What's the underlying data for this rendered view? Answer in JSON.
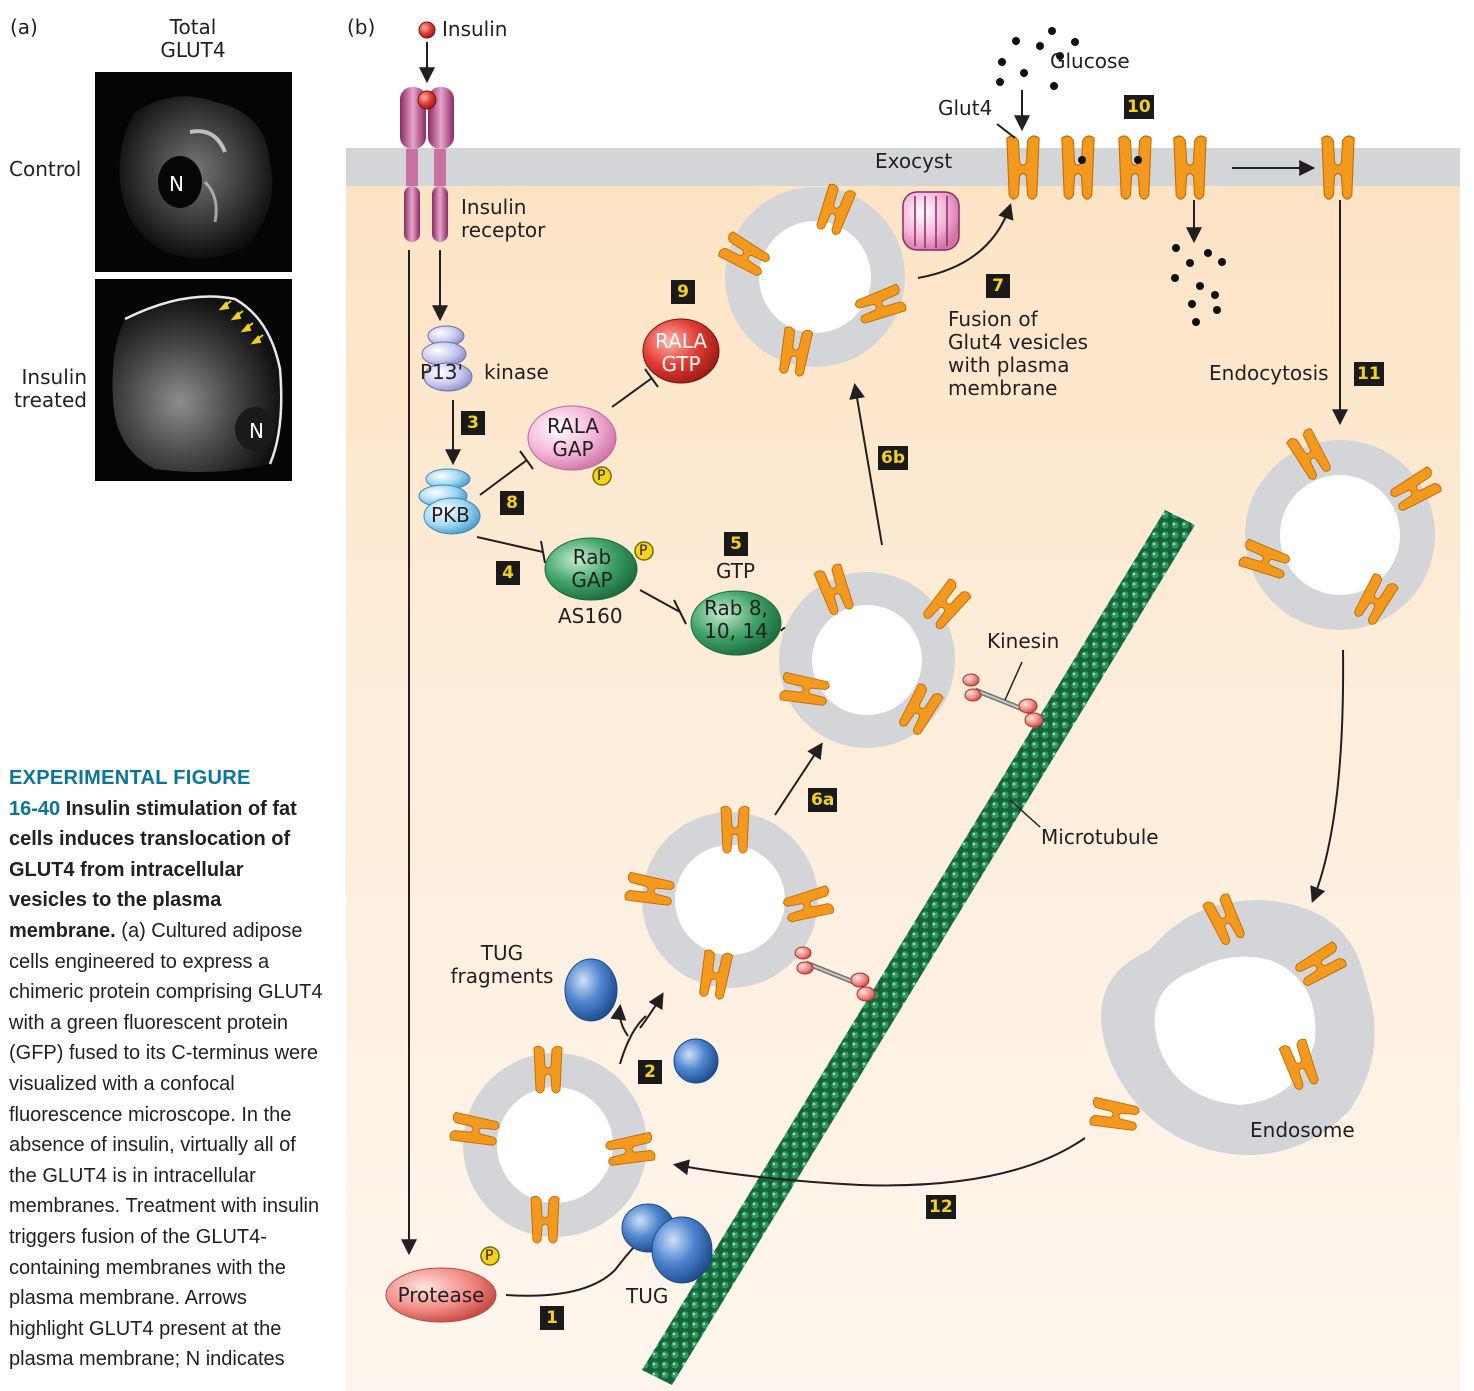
{
  "panel_a": {
    "label": "(a)",
    "column_header": "Total\nGLUT4",
    "rows": [
      {
        "label": "Control",
        "nucleus": "N"
      },
      {
        "label": "Insulin\ntreated",
        "nucleus": "N"
      }
    ]
  },
  "panel_b": {
    "label": "(b)",
    "insulin": "Insulin",
    "insulin_receptor": "Insulin\nreceptor",
    "pi3_kinase": "P13' kinase",
    "pi3_short": "P13'",
    "kinase": "kinase",
    "pkb": "PKB",
    "rala_gap": "RALA\nGAP",
    "rala_gtp": "RALA\nGTP",
    "rab_gap": "Rab\nGAP",
    "as160": "AS160",
    "gtp": "GTP",
    "rab": "Rab 8,\n10, 14",
    "phospho": "P",
    "exocyst": "Exocyst",
    "glut4": "Glut4",
    "glucose": "Glucose",
    "fusion": "Fusion of\nGlut4 vesicles\nwith plasma\nmembrane",
    "endocytosis": "Endocytosis",
    "kinesin": "Kinesin",
    "microtubule": "Microtubule",
    "tug_fragments": "TUG\nfragments",
    "tug": "TUG",
    "protease": "Protease",
    "endosome": "Endosome",
    "steps": [
      "1",
      "2",
      "3",
      "4",
      "5",
      "6a",
      "6b",
      "7",
      "8",
      "9",
      "10",
      "11",
      "12"
    ]
  },
  "caption": {
    "heading": "EXPERIMENTAL FIGURE",
    "number": "16-40",
    "title": "Insulin stimulation of fat cells induces translocation of GLUT4 from intracellular vesicles to the plasma membrane.",
    "body": "(a) Cultured adipose cells engineered to express a chimeric protein comprising GLUT4 with a green fluorescent protein (GFP) fused to its C-terminus were visualized with a confocal fluorescence microscope. In the absence of insulin, virtually all of the GLUT4 is in intracellular membranes. Treatment with insulin triggers fusion of the GLUT4-containing membranes with the plasma membrane. Arrows highlight GLUT4 present at the plasma membrane; N indicates"
  },
  "colors": {
    "caption_accent": "#0b7597",
    "glut4": "#f39a1e",
    "membrane": "#d3d5d8",
    "cytoplasm": "#fde3c3",
    "microtubule": "#1f7a48",
    "step_box": "#1a1a1a",
    "step_text": "#f2d21b"
  }
}
